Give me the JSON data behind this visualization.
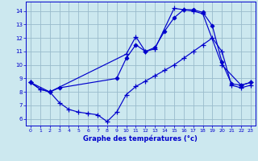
{
  "xlabel": "Graphe des températures (°c)",
  "bg_color": "#cce8ef",
  "line_color": "#0000cc",
  "grid_color": "#99bbcc",
  "xlim": [
    -0.5,
    23.5
  ],
  "ylim": [
    5.5,
    14.7
  ],
  "yticks": [
    6,
    7,
    8,
    9,
    10,
    11,
    12,
    13,
    14
  ],
  "xticks": [
    0,
    1,
    2,
    3,
    4,
    5,
    6,
    7,
    8,
    9,
    10,
    11,
    12,
    13,
    14,
    15,
    16,
    17,
    18,
    19,
    20,
    21,
    22,
    23
  ],
  "line1_x": [
    0,
    1,
    2,
    10,
    11,
    12,
    13,
    15,
    16,
    17,
    18,
    20,
    22,
    23
  ],
  "line1_y": [
    8.7,
    8.2,
    8.0,
    10.8,
    12.1,
    11.0,
    11.2,
    14.2,
    14.1,
    14.0,
    13.8,
    10.0,
    8.5,
    8.7
  ],
  "line2_x": [
    0,
    2,
    3,
    9,
    10,
    11,
    12,
    13,
    14,
    15,
    16,
    17,
    18,
    19,
    20,
    21,
    22,
    23
  ],
  "line2_y": [
    8.7,
    8.0,
    8.3,
    9.0,
    10.5,
    11.5,
    11.0,
    11.3,
    12.5,
    13.5,
    14.1,
    14.1,
    13.9,
    12.9,
    10.2,
    8.6,
    8.5,
    8.7
  ],
  "line3_x": [
    0,
    1,
    2,
    3,
    4,
    5,
    6,
    7,
    8,
    9,
    10,
    11,
    12,
    13,
    14,
    15,
    16,
    17,
    18,
    19,
    20,
    21,
    22,
    23
  ],
  "line3_y": [
    8.7,
    8.2,
    8.0,
    7.2,
    6.7,
    6.5,
    6.4,
    6.3,
    5.8,
    6.5,
    7.8,
    8.4,
    8.8,
    9.2,
    9.6,
    10.0,
    10.5,
    11.0,
    11.5,
    12.0,
    11.0,
    8.5,
    8.3,
    8.5
  ]
}
